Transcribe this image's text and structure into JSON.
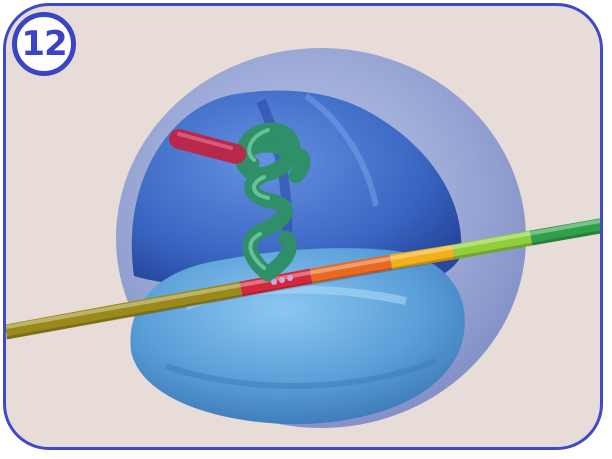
{
  "badge": {
    "number": "12"
  },
  "colors": {
    "frame_border": "#3f49c9",
    "background": "#e8dcd8",
    "outer_shell": "#8d9fd6",
    "inner_subunit": "#3f6fcc",
    "lower_subunit": "#5a9fd8",
    "tRNA": "#2f8f68",
    "amino_acid_chain": "#b8284c",
    "mRNA_strand": [
      "#9a8a1c",
      "#d6283c",
      "#e86a22",
      "#f2b01c",
      "#8fcf3a",
      "#30a048"
    ]
  },
  "icons": {
    "ribosome": "ribosome-illustration",
    "tRNA": "trna-coil-icon",
    "mRNA": "mrna-strand-icon"
  }
}
